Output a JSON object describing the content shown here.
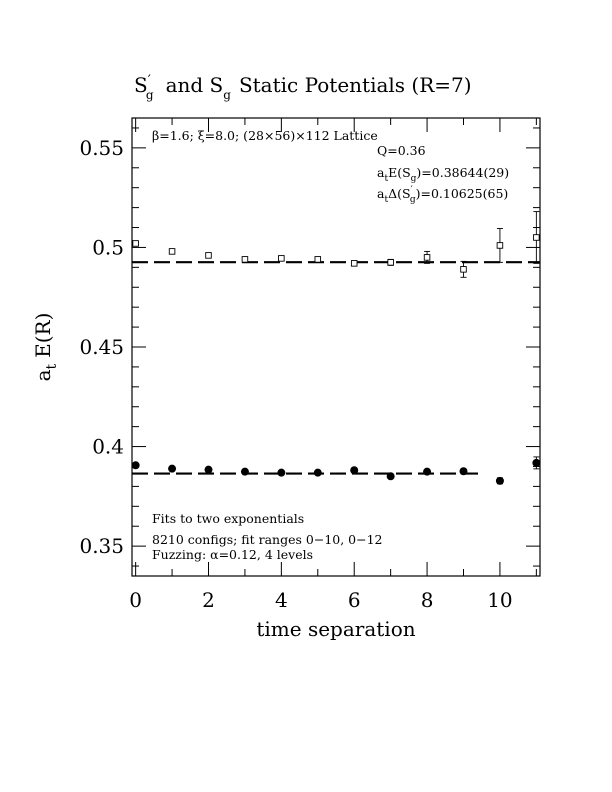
{
  "chart_data": {
    "type": "scatter",
    "title_parts": {
      "a": "S",
      "a_sub": "g",
      "a_prime": "′",
      "mid": "and S",
      "b_sub": "g",
      "rest": "Static Potentials (R=7)"
    },
    "xlabel": "time separation",
    "ylabel": "a",
    "ylabel_sub": "t",
    "ylabel_rest": "E(R)",
    "xlim": [
      -0.1,
      11.1
    ],
    "ylim": [
      0.335,
      0.565
    ],
    "xticks": [
      0,
      2,
      4,
      6,
      8,
      10
    ],
    "yticks": [
      0.35,
      0.4,
      0.45,
      0.5,
      0.55
    ],
    "ytick_labels": [
      "0.35",
      "0.4",
      "0.45",
      "0.5",
      "0.55"
    ],
    "annotations": {
      "lattice": "β=1.6; ξ=8.0; (28×56)×112 Lattice",
      "q": "Q=0.36",
      "energy_pre": "a",
      "energy_sub": "t",
      "energy_mid": "E(S",
      "energy_sub2": "g",
      "energy_post": ")=0.38644(29)",
      "delta_pre": "a",
      "delta_sub": "t",
      "delta_mid": "Δ(S",
      "delta_sub2": "g",
      "delta_prime": "′",
      "delta_post": ")=0.10625(65)",
      "fits": "Fits to two exponentials",
      "configs": "8210 configs; fit ranges 0−10, 0−12",
      "fuzzing": "Fuzzing: α=0.12, 4 levels"
    },
    "series": [
      {
        "marker": "open-square",
        "x": [
          0,
          1,
          2,
          3,
          4,
          5,
          6,
          7,
          8,
          9,
          10,
          11
        ],
        "y": [
          0.502,
          0.498,
          0.496,
          0.494,
          0.4945,
          0.494,
          0.492,
          0.4925,
          0.495,
          0.489,
          0.501,
          0.505
        ],
        "err": [
          0.0008,
          0.0008,
          0.001,
          0.0008,
          0.0008,
          0.0008,
          0.0008,
          0.0015,
          0.003,
          0.004,
          0.0085,
          0.013
        ],
        "fit_y": 0.4926,
        "fit_range": [
          -0.1,
          11.1
        ]
      },
      {
        "marker": "filled-circle",
        "x": [
          0,
          1,
          2,
          3,
          4,
          5,
          6,
          7,
          8,
          9,
          10,
          11
        ],
        "y": [
          0.3906,
          0.3889,
          0.3884,
          0.3874,
          0.3869,
          0.3869,
          0.3881,
          0.3851,
          0.3874,
          0.3876,
          0.3828,
          0.3918
        ],
        "err": [
          0.0006,
          0.0006,
          0.0006,
          0.0006,
          0.0006,
          0.0006,
          0.0008,
          0.0008,
          0.001,
          0.0012,
          0.0015,
          0.003
        ],
        "fit_y": 0.38644,
        "fit_range": [
          -0.1,
          9.5
        ]
      }
    ]
  }
}
